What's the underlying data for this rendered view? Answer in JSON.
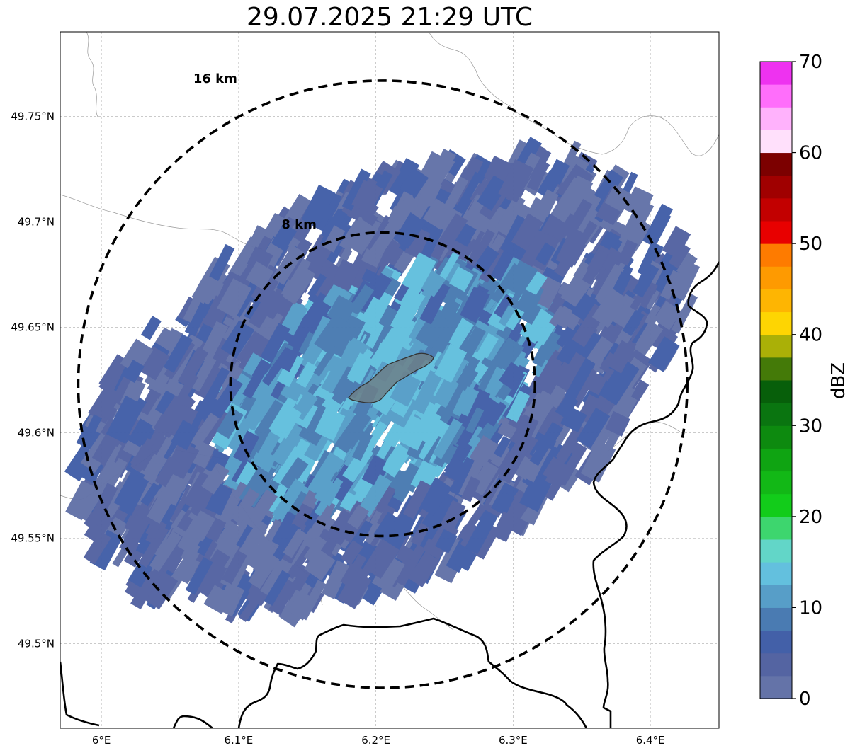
{
  "title": "29.07.2025 21:29 UTC",
  "map": {
    "lon_range": [
      5.97,
      6.45
    ],
    "lat_range": [
      49.46,
      49.79
    ],
    "lon_ticks": [
      {
        "value": 6.0,
        "label": "6°E"
      },
      {
        "value": 6.1,
        "label": "6.1°E"
      },
      {
        "value": 6.2,
        "label": "6.2°E"
      },
      {
        "value": 6.3,
        "label": "6.3°E"
      },
      {
        "value": 6.4,
        "label": "6.4°E"
      }
    ],
    "lat_ticks": [
      {
        "value": 49.5,
        "label": "49.5°N"
      },
      {
        "value": 49.55,
        "label": "49.55°N"
      },
      {
        "value": 49.6,
        "label": "49.6°N"
      },
      {
        "value": 49.65,
        "label": "49.65°N"
      },
      {
        "value": 49.7,
        "label": "49.7°N"
      },
      {
        "value": 49.75,
        "label": "49.75°N"
      }
    ],
    "grid": true,
    "radar_center": {
      "lon": 6.205,
      "lat": 49.623
    },
    "range_rings": [
      {
        "radius_km": 8,
        "label": "8 km"
      },
      {
        "radius_km": 16,
        "label": "16 km"
      }
    ],
    "highlight_area_color": "#6c7f88",
    "echo_field": {
      "center": {
        "lon": 6.205,
        "lat": 49.623
      },
      "orientation": "SW-NE elongated, rotated about -28 degrees",
      "dominant_dbz_range": [
        0,
        15
      ]
    }
  },
  "colorbar": {
    "label": "dBZ",
    "min": 0,
    "max": 70,
    "tick_values": [
      0,
      10,
      20,
      30,
      40,
      50,
      60,
      70
    ],
    "tick_labels": [
      "0",
      "10",
      "20",
      "30",
      "40",
      "50",
      "60",
      "70"
    ],
    "colors": [
      "#6473a8",
      "#5464a2",
      "#4360a8",
      "#4a7bb2",
      "#579ec8",
      "#63c0de",
      "#62d6c8",
      "#3dd66e",
      "#12cc1a",
      "#12b816",
      "#0fa412",
      "#0d8a0f",
      "#0a7510",
      "#075f0a",
      "#447a08",
      "#aab007",
      "#fed502",
      "#feb502",
      "#fe9a01",
      "#fe7b00",
      "#e80000",
      "#c20000",
      "#a00000",
      "#7c0000",
      "#ffe0fb",
      "#ffb2fc",
      "#ff6efb",
      "#ee32f0"
    ]
  }
}
